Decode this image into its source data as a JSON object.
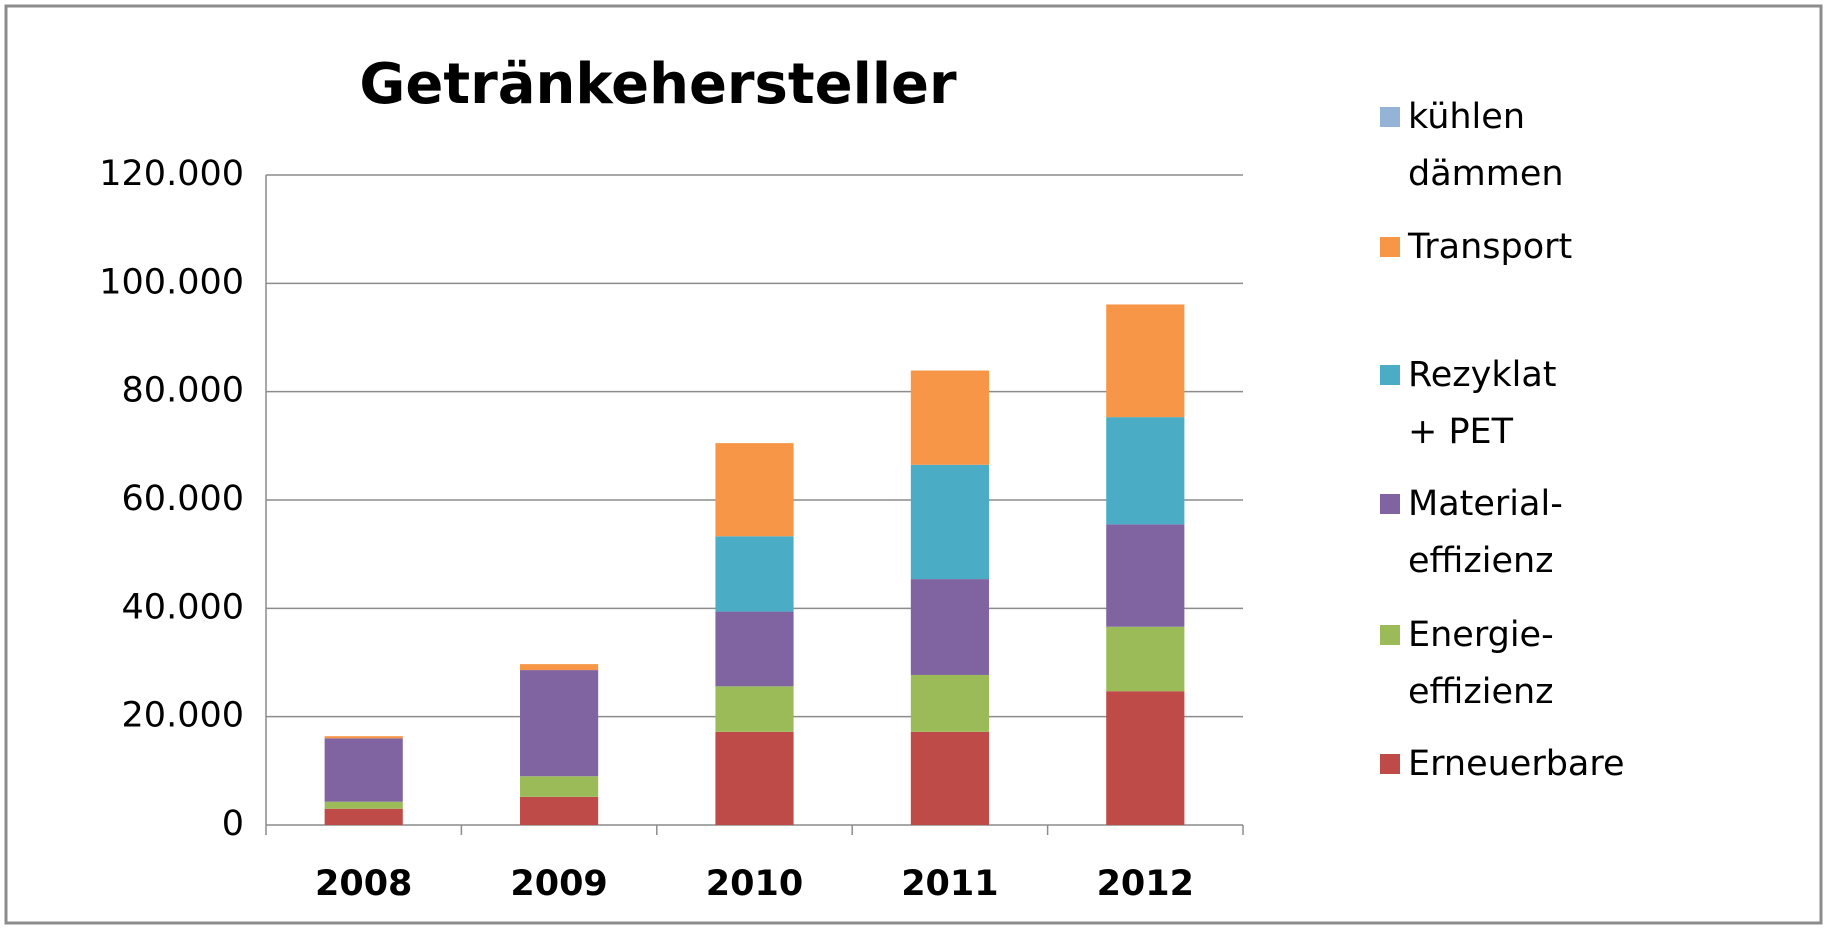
{
  "chart_data": {
    "type": "bar",
    "stacked": true,
    "title": "Getränkehersteller",
    "categories": [
      "2008",
      "2009",
      "2010",
      "2011",
      "2012"
    ],
    "series": [
      {
        "name": "Erneuerbare",
        "color": "#be4b48",
        "values": [
          3000,
          5200,
          17200,
          17200,
          24700
        ]
      },
      {
        "name": "Energie-\neffizienz",
        "color": "#9bbb59",
        "values": [
          1300,
          3800,
          8400,
          10500,
          11900
        ]
      },
      {
        "name": "Material-\neffizienz",
        "color": "#8064a2",
        "values": [
          11700,
          19600,
          13800,
          17700,
          18900
        ]
      },
      {
        "name": "Rezyklat + PET",
        "color": "#4bacc6",
        "values": [
          0,
          0,
          13900,
          21100,
          19800
        ]
      },
      {
        "name": "Transport",
        "color": "#f79646",
        "values": [
          400,
          1100,
          17200,
          17400,
          20800
        ]
      },
      {
        "name": "kühlen\ndämmen",
        "color": "#95b3d7",
        "values": [
          0,
          0,
          0,
          0,
          0
        ]
      }
    ],
    "ylim": [
      0,
      120000
    ],
    "yticks": [
      0,
      {
        "value": 20000,
        "label": "20.000"
      },
      {
        "value": 40000,
        "label": "40.000"
      },
      {
        "value": 60000,
        "label": "60.000"
      },
      {
        "value": 80000,
        "label": "80.000"
      },
      {
        "value": 100000,
        "label": "100.000"
      },
      {
        "value": 120000,
        "label": "120.000"
      }
    ],
    "grid": true,
    "legend": "right"
  }
}
